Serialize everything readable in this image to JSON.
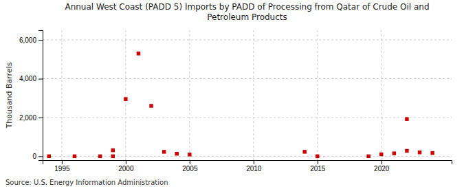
{
  "chart_data": {
    "type": "scatter",
    "title": "Annual West Coast (PADD 5) Imports by PADD of Processing from Qatar of Crude Oil and\nPetroleum Products",
    "y_label": "Thousand Barrels",
    "annotation": "Source: U.S. Energy Information Administration",
    "color": "#cc0000",
    "marker": "square",
    "grid": true,
    "x": [
      1994,
      1996,
      1998,
      1999,
      1999,
      2000,
      2001,
      2002,
      2003,
      2004,
      2005,
      2014,
      2015,
      2019,
      2020,
      2021,
      2022,
      2022,
      2023,
      2024
    ],
    "values": [
      0,
      0,
      0,
      0,
      310,
      2950,
      5300,
      2600,
      230,
      130,
      90,
      230,
      0,
      0,
      100,
      150,
      280,
      1920,
      200,
      170
    ],
    "xlim": [
      1993.5,
      2025.5
    ],
    "ylim": [
      -200,
      6500
    ],
    "xticks": [
      1995,
      2000,
      2005,
      2010,
      2015,
      2020
    ],
    "yticks": [
      0,
      {
        "value": 2000,
        "label": "2,000"
      },
      {
        "value": 4000,
        "label": "4,000"
      },
      {
        "value": 6000,
        "label": "6,000"
      }
    ]
  }
}
